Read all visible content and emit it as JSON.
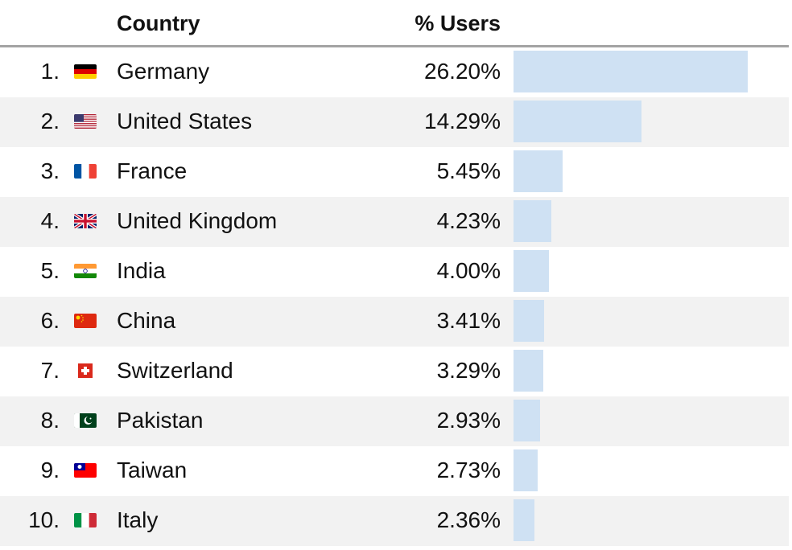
{
  "table": {
    "headers": {
      "country": "Country",
      "users": "% Users"
    }
  },
  "chart_data": {
    "type": "bar",
    "orientation": "horizontal",
    "columns": [
      "",
      "",
      "Country",
      "% Users"
    ],
    "bar_color": "#cfe1f3",
    "row_alt_color": "#f2f2f2",
    "max_value": 26.2,
    "rows": [
      {
        "rank": "1.",
        "country": "Germany",
        "flag": "flag-de-icon",
        "pct": "26.20%",
        "value": 26.2
      },
      {
        "rank": "2.",
        "country": "United States",
        "flag": "flag-us-icon",
        "pct": "14.29%",
        "value": 14.29
      },
      {
        "rank": "3.",
        "country": "France",
        "flag": "flag-fr-icon",
        "pct": "5.45%",
        "value": 5.45
      },
      {
        "rank": "4.",
        "country": "United Kingdom",
        "flag": "flag-gb-icon",
        "pct": "4.23%",
        "value": 4.23
      },
      {
        "rank": "5.",
        "country": "India",
        "flag": "flag-in-icon",
        "pct": "4.00%",
        "value": 4.0
      },
      {
        "rank": "6.",
        "country": "China",
        "flag": "flag-cn-icon",
        "pct": "3.41%",
        "value": 3.41
      },
      {
        "rank": "7.",
        "country": "Switzerland",
        "flag": "flag-ch-icon",
        "pct": "3.29%",
        "value": 3.29
      },
      {
        "rank": "8.",
        "country": "Pakistan",
        "flag": "flag-pk-icon",
        "pct": "2.93%",
        "value": 2.93
      },
      {
        "rank": "9.",
        "country": "Taiwan",
        "flag": "flag-tw-icon",
        "pct": "2.73%",
        "value": 2.73
      },
      {
        "rank": "10.",
        "country": "Italy",
        "flag": "flag-it-icon",
        "pct": "2.36%",
        "value": 2.36
      }
    ]
  }
}
